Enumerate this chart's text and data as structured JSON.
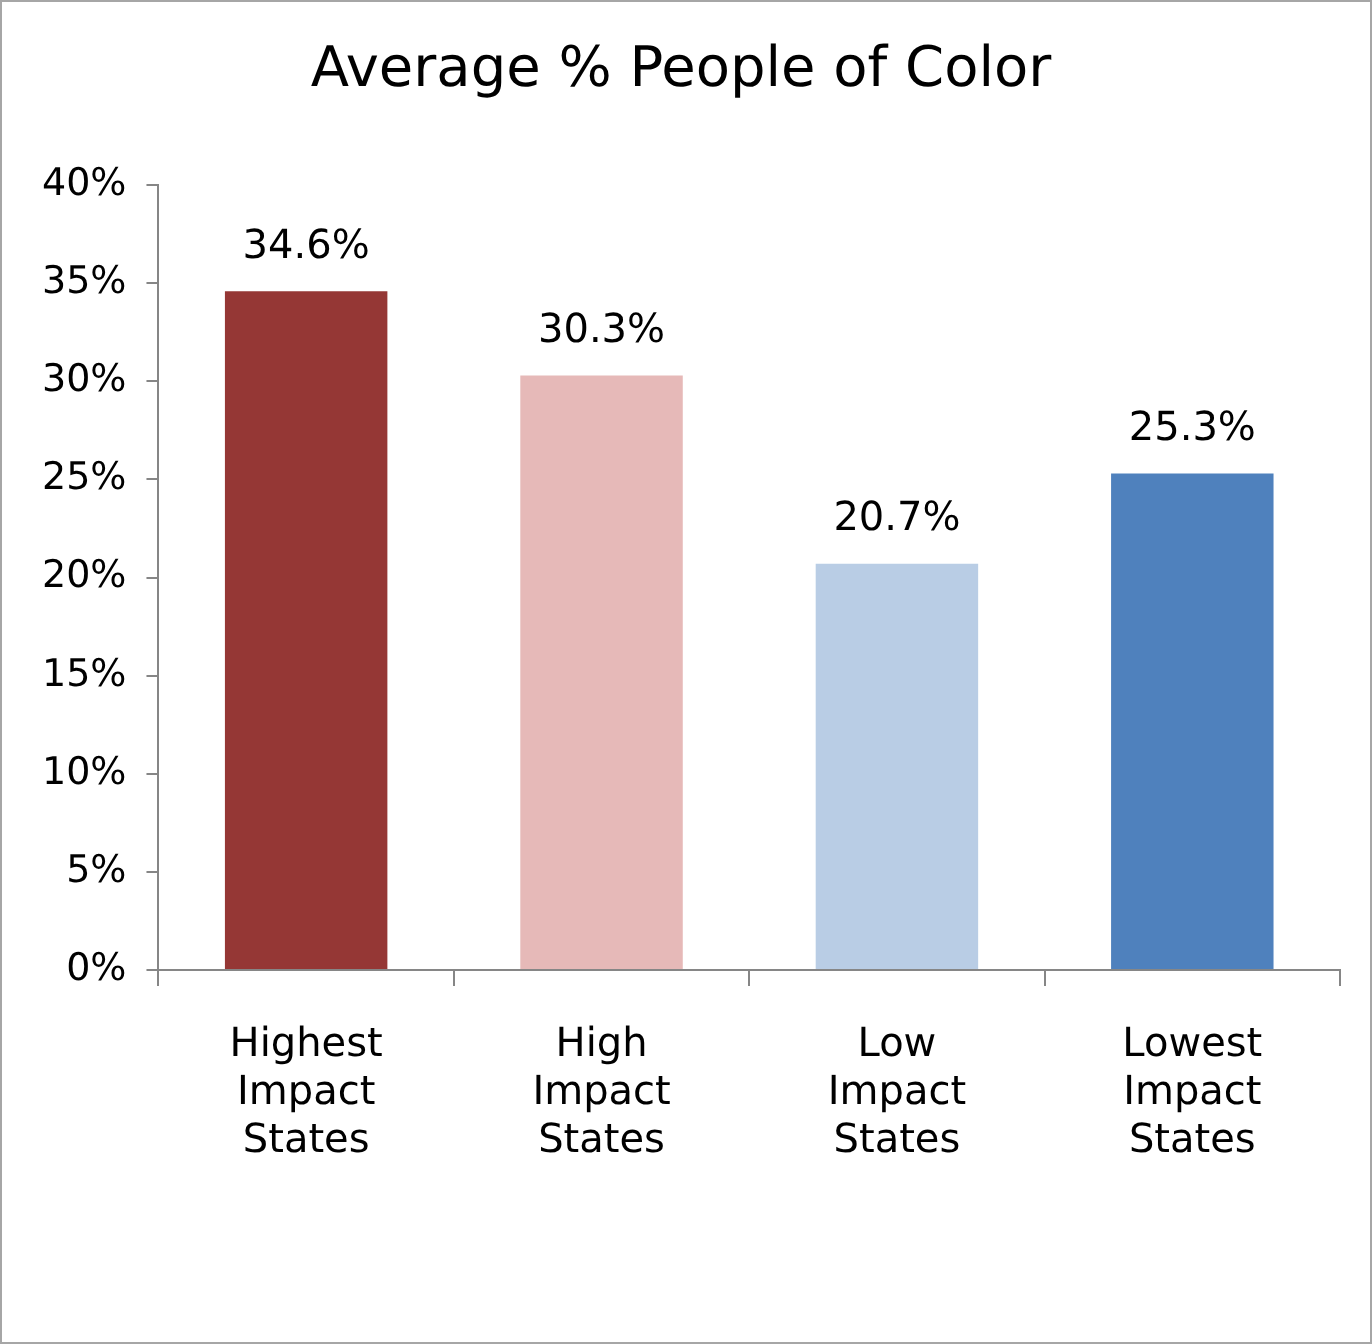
{
  "chart_data": {
    "type": "bar",
    "title": "Average % People of Color",
    "categories": [
      "Highest Impact States",
      "High Impact States",
      "Low Impact States",
      "Lowest Impact States"
    ],
    "values": [
      34.6,
      30.3,
      20.7,
      25.3
    ],
    "colors": [
      "#953735",
      "#e6b9b8",
      "#b9cde5",
      "#4f81bd"
    ],
    "value_labels": [
      "34.6%",
      "30.3%",
      "20.7%",
      "25.3%"
    ],
    "ylim": [
      0,
      40
    ],
    "yticks": [
      {
        "value": 0,
        "label": "0%"
      },
      {
        "value": 5,
        "label": "5%"
      },
      {
        "value": 10,
        "label": "10%"
      },
      {
        "value": 15,
        "label": "15%"
      },
      {
        "value": 20,
        "label": "20%"
      },
      {
        "value": 25,
        "label": "25%"
      },
      {
        "value": 30,
        "label": "30%"
      },
      {
        "value": 35,
        "label": "35%"
      },
      {
        "value": 40,
        "label": "40%"
      }
    ],
    "grid": false,
    "legend": false
  }
}
